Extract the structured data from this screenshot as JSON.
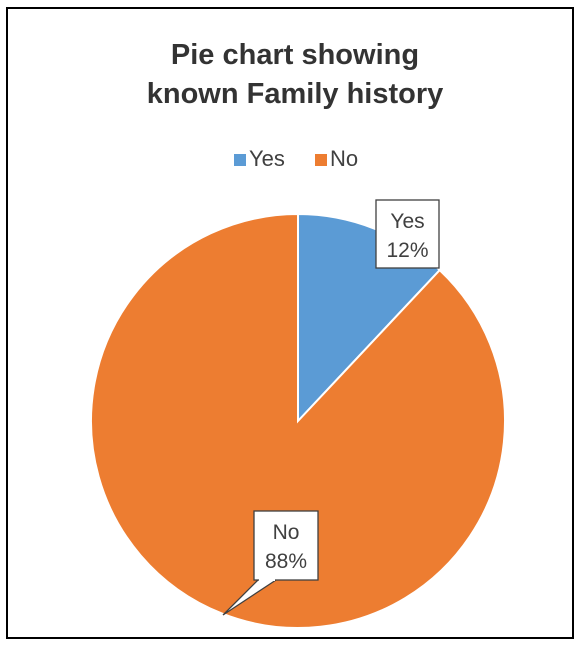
{
  "chart_data": {
    "type": "pie",
    "title": [
      "Pie chart showing",
      "known Family history"
    ],
    "categories": [
      "Yes",
      "No"
    ],
    "values": [
      12,
      88
    ],
    "unit": "%",
    "colors": [
      "#5b9bd5",
      "#ed7d31"
    ],
    "legend_placement": "top",
    "data_labels": [
      {
        "category": "Yes",
        "value_text": "12%"
      },
      {
        "category": "No",
        "value_text": "88%"
      }
    ]
  }
}
